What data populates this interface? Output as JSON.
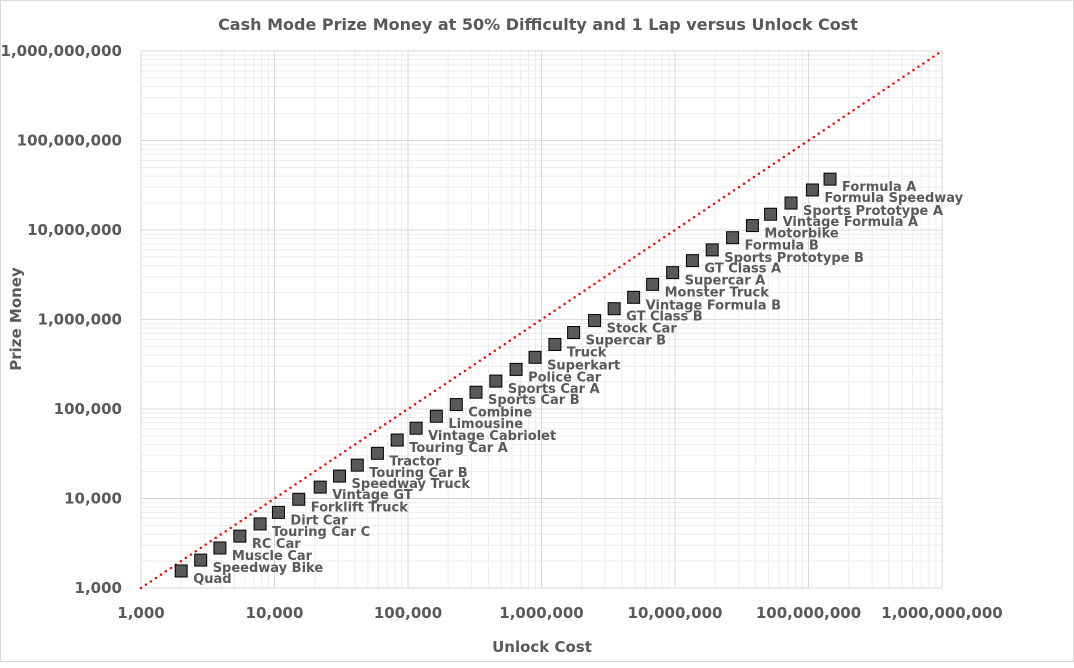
{
  "chart_data": {
    "type": "scatter",
    "title": "Cash Mode Prize Money at 50% Difficulty and 1 Lap versus Unlock Cost",
    "xlabel": "Unlock Cost",
    "ylabel": "Prize Money",
    "xscale": "log",
    "yscale": "log",
    "xlim": [
      1000,
      1000000000
    ],
    "ylim": [
      1000,
      1000000000
    ],
    "x_ticks": [
      "1,000",
      "10,000",
      "100,000",
      "1,000,000",
      "10,000,000",
      "100,000,000",
      "1,000,000,000"
    ],
    "y_ticks": [
      "1,000",
      "10,000",
      "100,000",
      "1,000,000",
      "10,000,000",
      "100,000,000",
      "1,000,000,000"
    ],
    "grid": true,
    "reference_line": {
      "name": "y = x",
      "color": "#ff0000",
      "style": "dotted"
    },
    "marker_color": "#595959",
    "points": [
      {
        "label": "Quad",
        "x": 2000,
        "y": 1550
      },
      {
        "label": "Speedway Bike",
        "x": 2800,
        "y": 2050
      },
      {
        "label": "Muscle Car",
        "x": 3900,
        "y": 2800
      },
      {
        "label": "RC Car",
        "x": 5500,
        "y": 3800
      },
      {
        "label": "Touring Car C",
        "x": 7800,
        "y": 5200
      },
      {
        "label": "Dirt Car",
        "x": 10700,
        "y": 7000
      },
      {
        "label": "Forklift Truck",
        "x": 15200,
        "y": 9800
      },
      {
        "label": "Vintage GT",
        "x": 22000,
        "y": 13400
      },
      {
        "label": "Speedway Truck",
        "x": 30700,
        "y": 17800
      },
      {
        "label": "Touring Car B",
        "x": 41700,
        "y": 23600
      },
      {
        "label": "Tractor",
        "x": 59000,
        "y": 32000
      },
      {
        "label": "Touring Car A",
        "x": 83000,
        "y": 45000
      },
      {
        "label": "Vintage Cabriolet",
        "x": 115000,
        "y": 61000
      },
      {
        "label": "Limousine",
        "x": 163000,
        "y": 83000
      },
      {
        "label": "Combine",
        "x": 230000,
        "y": 112000
      },
      {
        "label": "Sports Car B",
        "x": 323000,
        "y": 154000
      },
      {
        "label": "Sports Car A",
        "x": 455000,
        "y": 205000
      },
      {
        "label": "Police Car",
        "x": 645000,
        "y": 277000
      },
      {
        "label": "Superkart",
        "x": 895000,
        "y": 378000
      },
      {
        "label": "Truck",
        "x": 1260000,
        "y": 526000
      },
      {
        "label": "Supercar B",
        "x": 1740000,
        "y": 715000
      },
      {
        "label": "Stock Car",
        "x": 2500000,
        "y": 973000
      },
      {
        "label": "GT Class B",
        "x": 3500000,
        "y": 1320000
      },
      {
        "label": "Vintage Formula B",
        "x": 4900000,
        "y": 1770000
      },
      {
        "label": "Monster Truck",
        "x": 6800000,
        "y": 2470000
      },
      {
        "label": "Supercar A",
        "x": 9600000,
        "y": 3340000
      },
      {
        "label": "GT Class A",
        "x": 13500000,
        "y": 4550000
      },
      {
        "label": "Sports Prototype B",
        "x": 19000000,
        "y": 6000000
      },
      {
        "label": "Formula B",
        "x": 27000000,
        "y": 8200000
      },
      {
        "label": "Motorbike",
        "x": 38000000,
        "y": 11200000
      },
      {
        "label": "Vintage Formula A",
        "x": 52000000,
        "y": 15000000
      },
      {
        "label": "Sports Prototype A",
        "x": 74000000,
        "y": 20000000
      },
      {
        "label": "Formula Speedway",
        "x": 107000000,
        "y": 28000000
      },
      {
        "label": "Formula A",
        "x": 145000000,
        "y": 37000000
      }
    ]
  }
}
